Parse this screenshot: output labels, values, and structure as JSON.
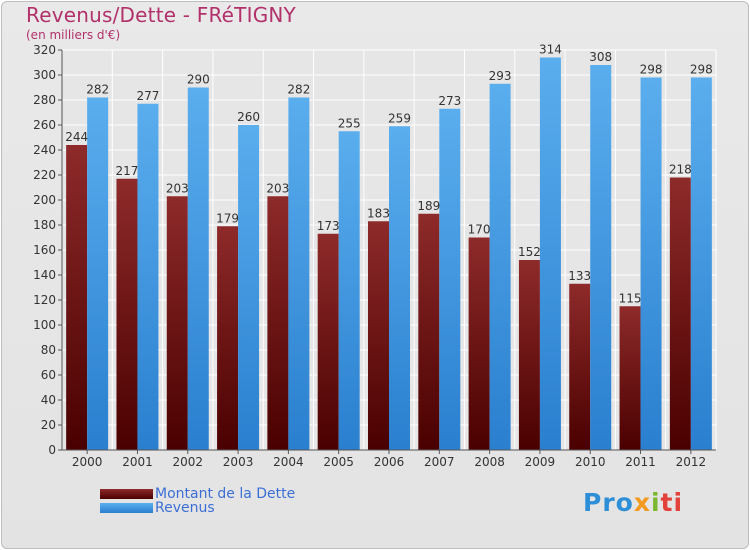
{
  "chart_data": {
    "type": "bar",
    "title": "Revenus/Dette - FRéTIGNY",
    "subtitle": "(en milliers d'€)",
    "categories": [
      "2000",
      "2001",
      "2002",
      "2003",
      "2004",
      "2005",
      "2006",
      "2007",
      "2008",
      "2009",
      "2010",
      "2011",
      "2012"
    ],
    "series": [
      {
        "name": "Montant de la Dette",
        "color": "#8b1a1a",
        "values": [
          244,
          217,
          203,
          179,
          203,
          173,
          183,
          189,
          170,
          152,
          133,
          115,
          218
        ]
      },
      {
        "name": "Revenus",
        "color": "#3f9ee6",
        "values": [
          282,
          277,
          290,
          260,
          282,
          255,
          259,
          273,
          293,
          314,
          308,
          298,
          298
        ]
      }
    ],
    "ylim": [
      0,
      320
    ],
    "yticks": [
      0,
      20,
      40,
      60,
      80,
      100,
      120,
      140,
      160,
      180,
      200,
      220,
      240,
      260,
      280,
      300,
      320
    ],
    "grid": true,
    "xlabel": "",
    "ylabel": "",
    "legend_position": "bottom-left"
  },
  "legend": {
    "items": [
      {
        "label": "Montant de la Dette",
        "color": "#6e0d0d"
      },
      {
        "label": "Revenus",
        "color": "#4aa3e6"
      }
    ]
  },
  "brand": {
    "p": "Pro",
    "x": "x",
    "i": "i",
    "t": "ti"
  }
}
